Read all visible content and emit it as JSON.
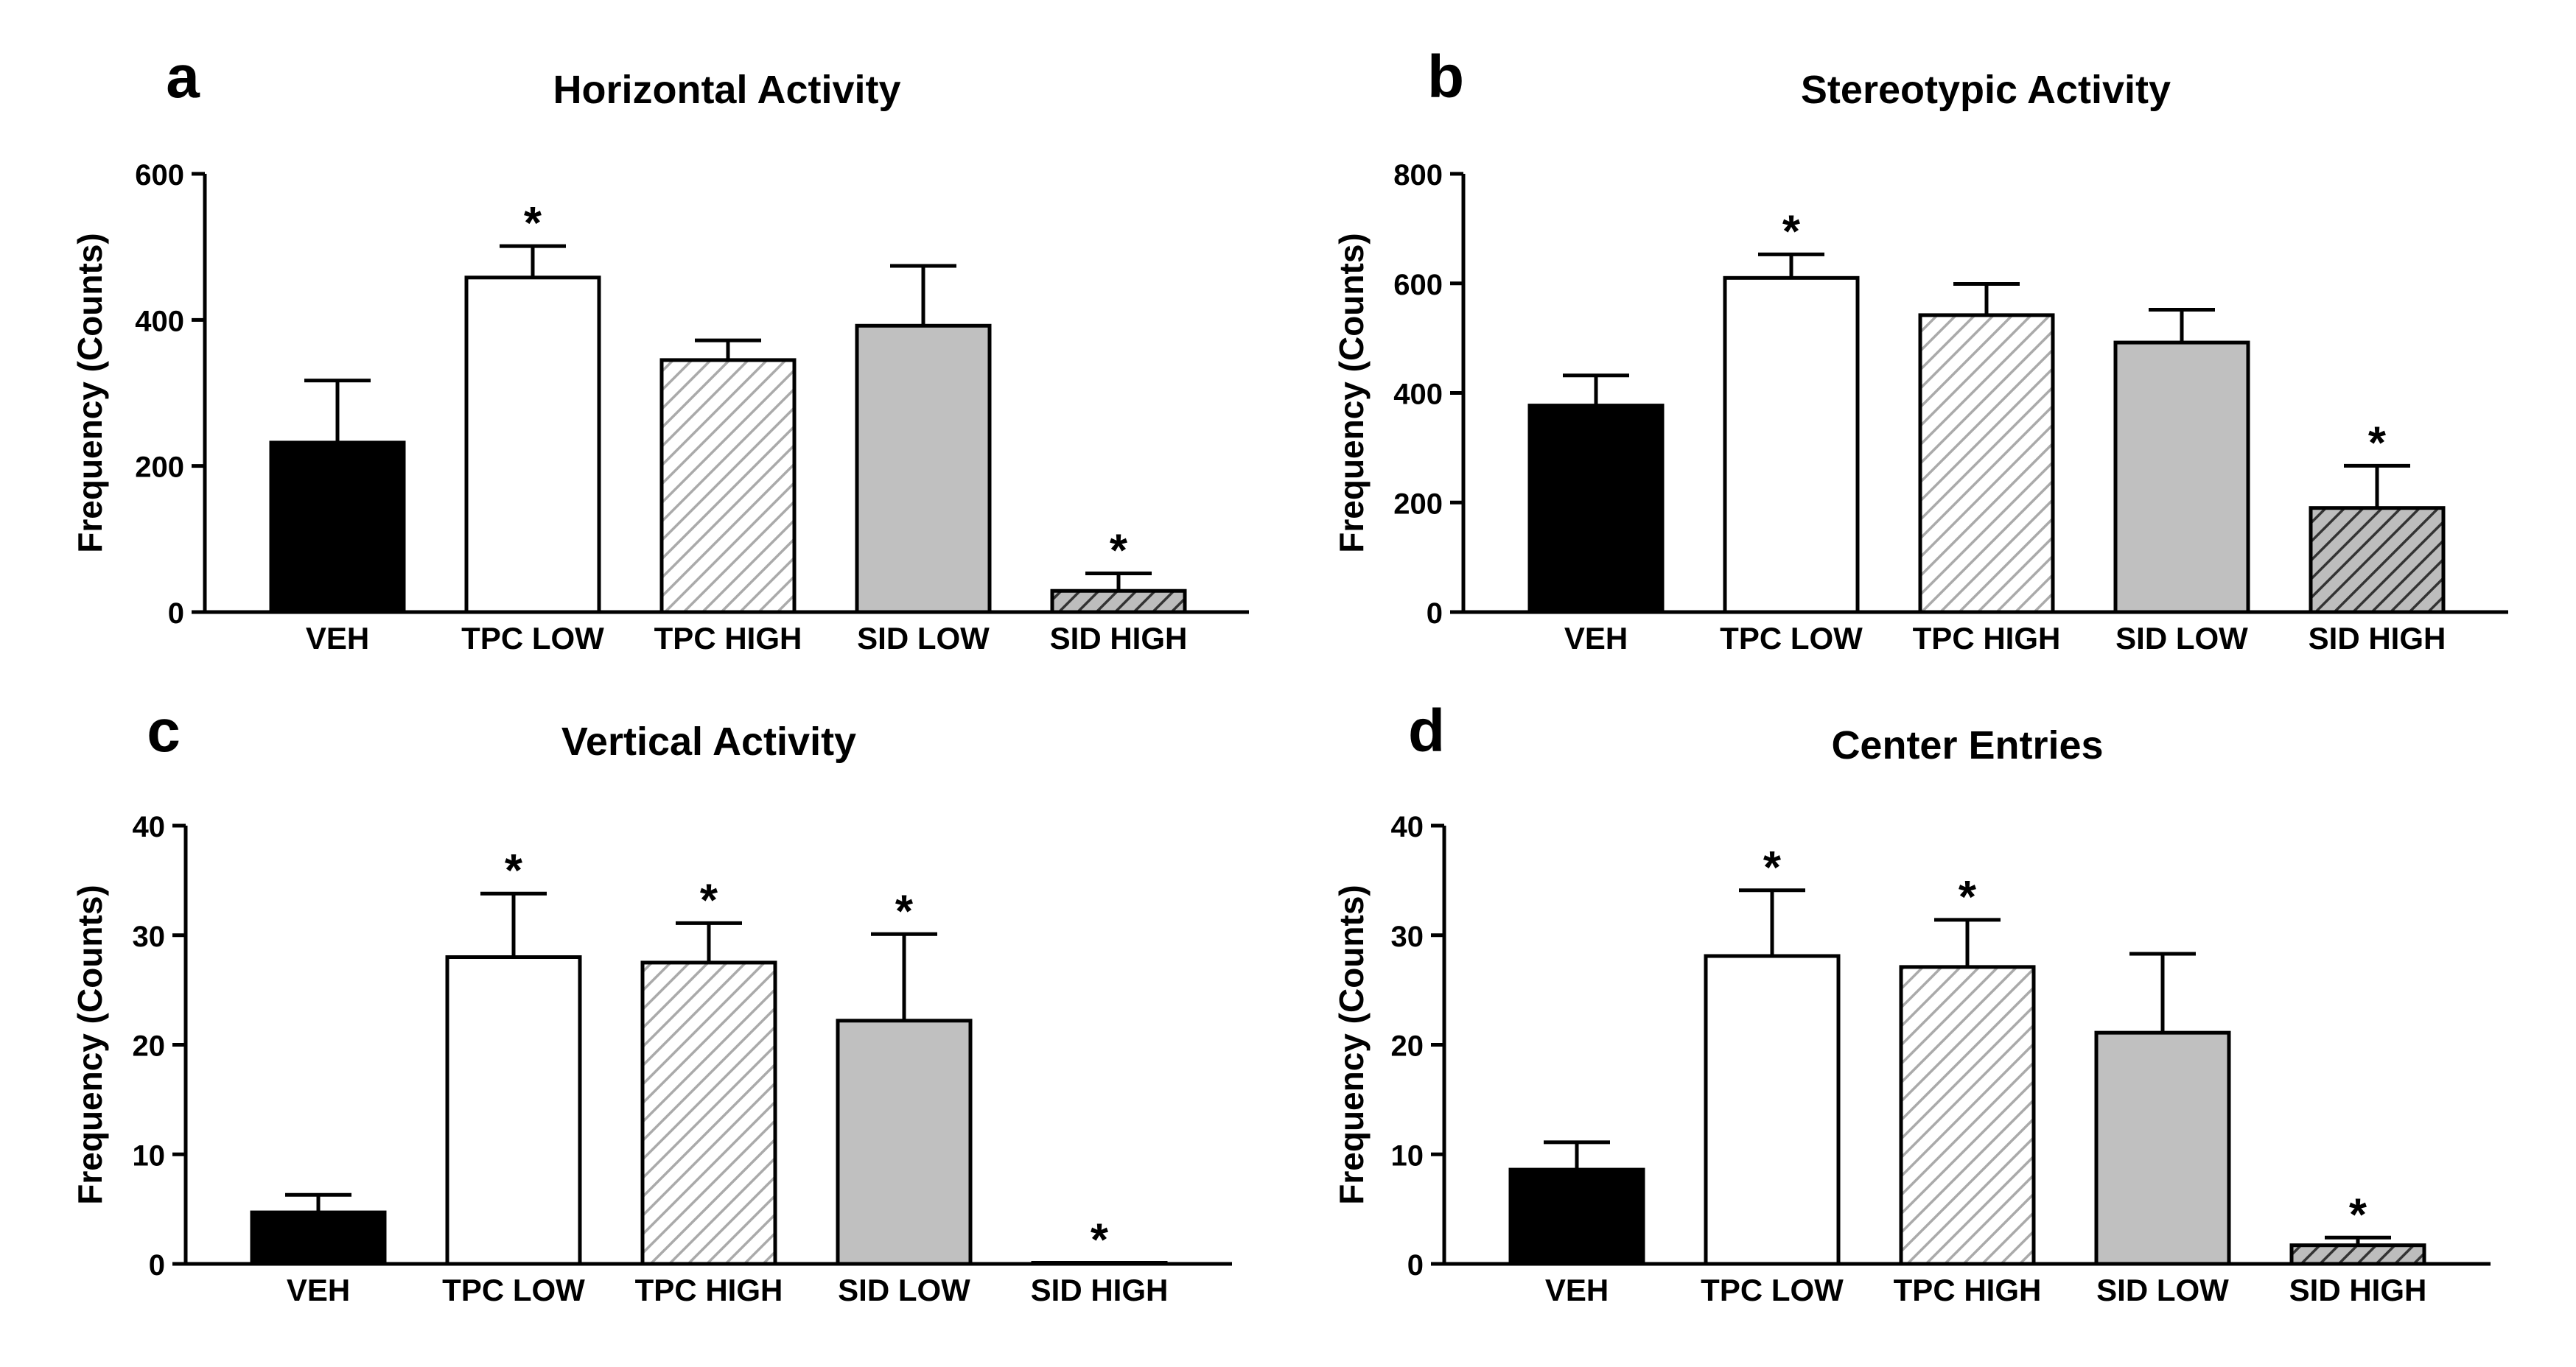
{
  "figure": {
    "colors": {
      "black": "#000000",
      "white": "#ffffff",
      "light_gray": "#c0c0c0",
      "hatch_light": "#aaaaaa",
      "hatch_dark": "#333333",
      "hatch_dark_bg": "#bdbdbd"
    },
    "bar_styles": [
      "solid-black",
      "white",
      "hatch-light",
      "solid-gray",
      "hatch-dark"
    ]
  },
  "chart_data": [
    {
      "panel": "a",
      "type": "bar",
      "title": "Horizontal Activity",
      "ylabel": "Frequency (Counts)",
      "xlabel": "",
      "categories": [
        "VEH",
        "TPC LOW",
        "TPC HIGH",
        "SID LOW",
        "SID HIGH"
      ],
      "values": [
        232,
        458,
        345,
        392,
        29
      ],
      "errors": [
        85,
        43,
        27,
        82,
        24
      ],
      "significant": [
        false,
        true,
        false,
        false,
        true
      ],
      "ylim": [
        0,
        600
      ],
      "yticks": [
        0,
        200,
        400,
        600
      ],
      "annotation_symbol": "*"
    },
    {
      "panel": "b",
      "type": "bar",
      "title": "Stereotypic Activity",
      "ylabel": "Frequency (Counts)",
      "xlabel": "",
      "categories": [
        "VEH",
        "TPC LOW",
        "TPC HIGH",
        "SID LOW",
        "SID HIGH"
      ],
      "values": [
        377,
        610,
        542,
        492,
        190
      ],
      "errors": [
        55,
        43,
        57,
        60,
        77
      ],
      "significant": [
        false,
        true,
        false,
        false,
        true
      ],
      "ylim": [
        0,
        800
      ],
      "yticks": [
        0,
        200,
        400,
        600,
        800
      ],
      "annotation_symbol": "*"
    },
    {
      "panel": "c",
      "type": "bar",
      "title": "Vertical Activity",
      "ylabel": "Frequency (Counts)",
      "xlabel": "",
      "categories": [
        "VEH",
        "TPC LOW",
        "TPC HIGH",
        "SID LOW",
        "SID HIGH"
      ],
      "values": [
        4.7,
        28.0,
        27.5,
        22.2,
        0.1
      ],
      "errors": [
        1.6,
        5.8,
        3.6,
        7.9,
        0
      ],
      "significant": [
        false,
        true,
        true,
        true,
        true
      ],
      "ylim": [
        0,
        40
      ],
      "yticks": [
        0,
        10,
        20,
        30,
        40
      ],
      "annotation_symbol": "*"
    },
    {
      "panel": "d",
      "type": "bar",
      "title": "Center Entries",
      "ylabel": "Frequency (Counts)",
      "xlabel": "",
      "categories": [
        "VEH",
        "TPC LOW",
        "TPC HIGH",
        "SID LOW",
        "SID HIGH"
      ],
      "values": [
        8.6,
        28.1,
        27.1,
        21.1,
        1.7
      ],
      "errors": [
        2.5,
        6.0,
        4.3,
        7.2,
        0.7
      ],
      "significant": [
        false,
        true,
        true,
        false,
        true
      ],
      "ylim": [
        0,
        40
      ],
      "yticks": [
        0,
        10,
        20,
        30,
        40
      ],
      "annotation_symbol": "*"
    }
  ]
}
